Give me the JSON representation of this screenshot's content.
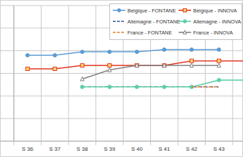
{
  "chart_data": {
    "type": "line",
    "categories": [
      "S 36",
      "S 37",
      "S 38",
      "S 39",
      "S 40",
      "S 41",
      "S 42",
      "S 43",
      null
    ],
    "series": [
      {
        "name": "Belgique - FONTANE",
        "color": "#5b9bd5",
        "marker": "circle",
        "line_style": "solid",
        "values": [
          3.8,
          3.8,
          3.95,
          3.95,
          3.95,
          4.05,
          4.05,
          4.05,
          null
        ]
      },
      {
        "name": "Belgique - INNOVA",
        "color": "#e0301e",
        "marker": "square",
        "line_style": "solid",
        "values": [
          3.2,
          3.2,
          3.35,
          3.35,
          3.35,
          3.35,
          3.55,
          3.55,
          3.55
        ]
      },
      {
        "name": "Allemagne - FONTANE",
        "color": "#2e4d9a",
        "marker": "none",
        "line_style": "dashed",
        "values": [
          null,
          null,
          2.4,
          2.4,
          2.4,
          2.4,
          2.4,
          2.4,
          null
        ]
      },
      {
        "name": "Allemagne - INNOVA",
        "color": "#5fd0a8",
        "marker": "circle",
        "line_style": "solid",
        "values": [
          null,
          null,
          2.4,
          2.4,
          2.4,
          2.4,
          2.4,
          2.7,
          2.7
        ]
      },
      {
        "name": "France - FONTANE",
        "color": "#e67e22",
        "marker": "none",
        "line_style": "dashed",
        "values": [
          null,
          null,
          null,
          null,
          null,
          null,
          2.4,
          2.4,
          null
        ]
      },
      {
        "name": "France - INNOVA",
        "color": "#7f7f7f",
        "marker": "triangle",
        "line_style": "solid",
        "values": [
          null,
          null,
          2.75,
          3.15,
          3.35,
          3.35,
          3.35,
          3.35,
          null
        ]
      }
    ],
    "ylim": [
      0,
      6
    ],
    "yticks": [
      0,
      1,
      2,
      3,
      4,
      5,
      6
    ],
    "grid": true,
    "legend": "top-right",
    "tick_labels": "x"
  }
}
